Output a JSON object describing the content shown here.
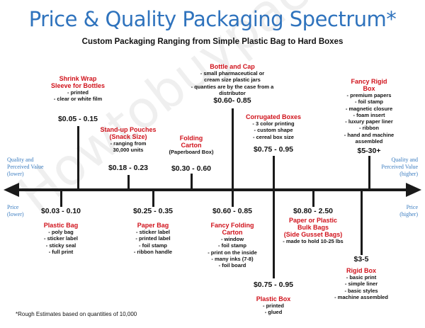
{
  "title": "Price & Quality Packaging Spectrum*",
  "subtitle": "Custom Packaging Ranging from Simple Plastic Bag to Hard Boxes",
  "watermark": "Howtobuypackaging",
  "axis_labels": {
    "quality_lower": [
      "Quality and",
      "Perceived Value",
      "(lower)"
    ],
    "quality_higher": [
      "Quality and",
      "Perceived Value",
      "(higher)"
    ],
    "price_lower": [
      "Price",
      "(lower)"
    ],
    "price_higher": [
      "Price",
      "(higher)"
    ]
  },
  "items": [
    {
      "title": [
        "Shrink Wrap",
        "Sleeve for Bottles"
      ],
      "bullets": [
        "- printed",
        "- clear or white film"
      ],
      "price": "$0.05 - 0.15"
    },
    {
      "title": [
        "Stand-up Pouches",
        "(Snack Size)"
      ],
      "bullets": [
        "- ranging from",
        "30,000 units"
      ],
      "price": "$0.18 - 0.23"
    },
    {
      "title": [
        "Folding",
        "Carton"
      ],
      "bullets": [
        "(Paperboard Box)"
      ],
      "price": "$0.30 - 0.60"
    },
    {
      "title": [
        "Bottle and Cap"
      ],
      "bullets": [
        "- small pharmaceutical or",
        "cream size plastic jars",
        "- quanties are by the case from a distributor"
      ],
      "price": "$0.60- 0.85"
    },
    {
      "title": [
        "Corrugated Boxes"
      ],
      "bullets": [
        "- 3 color printing",
        "- custom shape",
        "- cereal box size"
      ],
      "price": "$0.75 - 0.95"
    },
    {
      "title": [
        "Fancy Rigid",
        "Box"
      ],
      "bullets": [
        "- premium papers",
        "- foil stamp",
        "- magnetic closure",
        "- foam insert",
        "- luxury paper liner",
        "- ribbon",
        "- hand and machine",
        "assembled"
      ],
      "price": "$5-30+"
    },
    {
      "title": [
        "Plastic Bag"
      ],
      "bullets": [
        "- poly bag",
        "- sticker label",
        "- sticky seal",
        "- full print"
      ],
      "price": "$0.03 - 0.10"
    },
    {
      "title": [
        "Paper Bag"
      ],
      "bullets": [
        "- sticker label",
        "- printed label",
        "- foil stamp",
        "- ribbon handle"
      ],
      "price": "$0.25 - 0.35"
    },
    {
      "title": [
        "Fancy Folding",
        "Carton"
      ],
      "bullets": [
        "- window",
        "- foil stamp",
        "- print on the inside",
        "- many inks (7-8)",
        "- foil board"
      ],
      "price": "$0.60 - 0.85"
    },
    {
      "title": [
        "Plastic Box"
      ],
      "bullets": [
        "- printed",
        "- glued"
      ],
      "price": "$0.75 - 0.95"
    },
    {
      "title": [
        "Paper or Plastic",
        "Bulk Bags",
        "(Side Gusset Bags)"
      ],
      "bullets": [
        "- made to hold 10-25 lbs"
      ],
      "price": "$0.80 - 2.50"
    },
    {
      "title": [
        "Rigid Box"
      ],
      "bullets": [
        "- basic print",
        "- simple liner",
        "- basic styles",
        "- machine assembled"
      ],
      "price": "$3-5"
    }
  ],
  "footer": "*Rough Estimates based on quantities of 10,000",
  "colors": {
    "title": "#2f73bd",
    "item_title": "#d0121b",
    "axis": "#1a1a1a",
    "side_label": "#3a7cc0"
  }
}
